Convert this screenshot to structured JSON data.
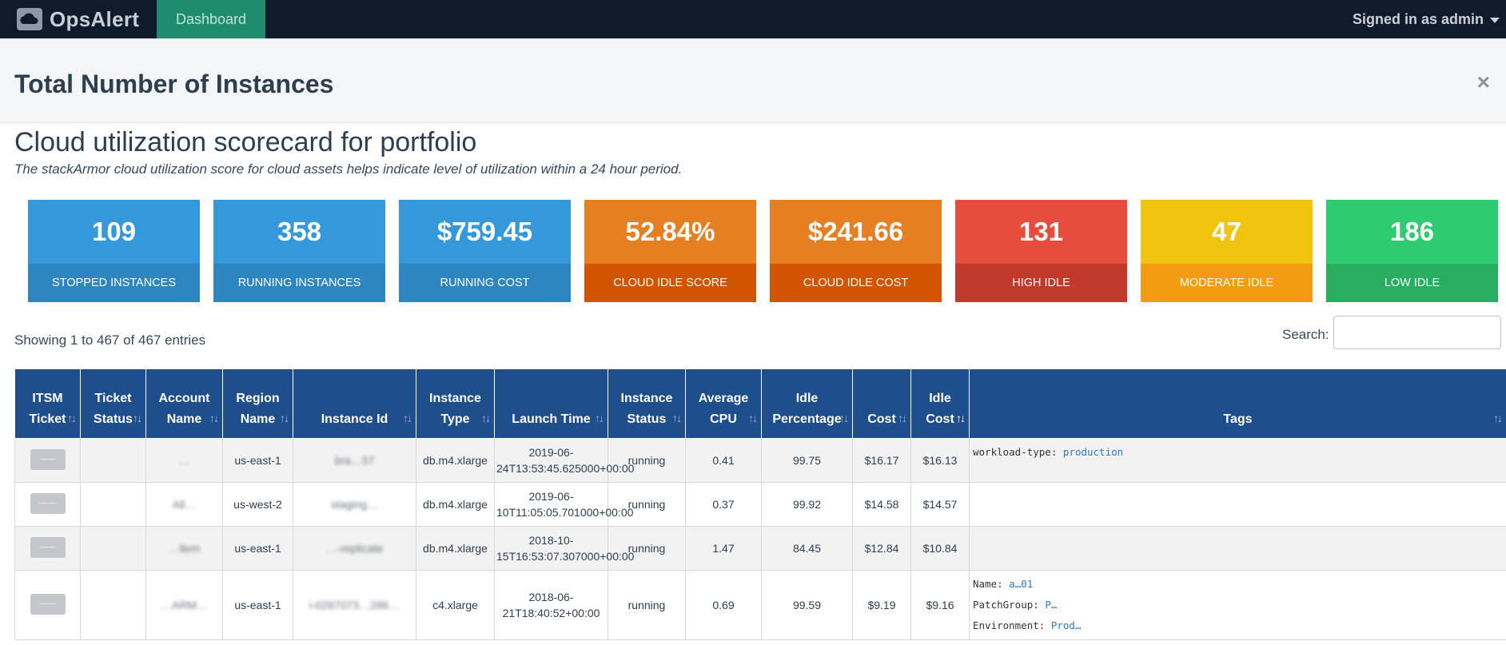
{
  "navbar": {
    "brand": "OpsAlert",
    "tab": "Dashboard",
    "signed_in": "Signed in as admin"
  },
  "modal": {
    "title": "Total Number of Instances",
    "close": "×"
  },
  "scorecard": {
    "title": "Cloud utilization scorecard for portfolio",
    "subtitle": "The stackArmor cloud utilization score for cloud assets helps indicate level of utilization within a 24 hour period."
  },
  "cards": [
    {
      "value": "109",
      "label": "STOPPED INSTANCES",
      "top": "#3498db",
      "bottom": "#2e86c1"
    },
    {
      "value": "358",
      "label": "RUNNING INSTANCES",
      "top": "#3498db",
      "bottom": "#2e86c1"
    },
    {
      "value": "$759.45",
      "label": "RUNNING COST",
      "top": "#3498db",
      "bottom": "#2e86c1"
    },
    {
      "value": "52.84%",
      "label": "CLOUD IDLE SCORE",
      "top": "#e67e22",
      "bottom": "#d35400"
    },
    {
      "value": "$241.66",
      "label": "CLOUD IDLE COST",
      "top": "#e67e22",
      "bottom": "#d35400"
    },
    {
      "value": "131",
      "label": "HIGH IDLE",
      "top": "#e74c3c",
      "bottom": "#c0392b"
    },
    {
      "value": "47",
      "label": "MODERATE IDLE",
      "top": "#f1c40f",
      "bottom": "#f39c12"
    },
    {
      "value": "186",
      "label": "LOW IDLE",
      "top": "#2ecc71",
      "bottom": "#27ae60"
    }
  ],
  "table_info": {
    "showing": "Showing 1 to 467 of 467 entries",
    "search_label": "Search:",
    "search_value": ""
  },
  "columns": [
    {
      "l1": "ITSM",
      "l2": "Ticket"
    },
    {
      "l1": "Ticket",
      "l2": "Status"
    },
    {
      "l1": "Account",
      "l2": "Name"
    },
    {
      "l1": "Region",
      "l2": "Name"
    },
    {
      "l1": "",
      "l2": "Instance Id"
    },
    {
      "l1": "Instance",
      "l2": "Type"
    },
    {
      "l1": "",
      "l2": "Launch Time"
    },
    {
      "l1": "Instance",
      "l2": "Status"
    },
    {
      "l1": "Average",
      "l2": "CPU"
    },
    {
      "l1": "Idle",
      "l2": "Percentage"
    },
    {
      "l1": "",
      "l2": "Cost"
    },
    {
      "l1": "Idle",
      "l2": "Cost"
    },
    {
      "l1": "",
      "l2": "Tags"
    }
  ],
  "rows": [
    {
      "account": "…",
      "region": "us-east-1",
      "instance_id": "bra…57",
      "type": "db.m4.xlarge",
      "launch_l1": "2019-06-",
      "launch_l2": "24T13:53:45.625000+00:00",
      "status": "running",
      "cpu": "0.41",
      "idle": "99.75",
      "cost": "$16.17",
      "idle_cost": "$16.13",
      "tags": [
        {
          "key": "workload-type:",
          "val": "production"
        }
      ]
    },
    {
      "account": "All…",
      "region": "us-west-2",
      "instance_id": "staging…",
      "type": "db.m4.xlarge",
      "launch_l1": "2019-06-",
      "launch_l2": "10T11:05:05.701000+00:00",
      "status": "running",
      "cpu": "0.37",
      "idle": "99.92",
      "cost": "$14.58",
      "idle_cost": "$14.57",
      "tags": []
    },
    {
      "account": "…llem",
      "region": "us-east-1",
      "instance_id": "…-replicate",
      "type": "db.m4.xlarge",
      "launch_l1": "2018-10-",
      "launch_l2": "15T16:53:07.307000+00:00",
      "status": "running",
      "cpu": "1.47",
      "idle": "84.45",
      "cost": "$12.84",
      "idle_cost": "$10.84",
      "tags": []
    },
    {
      "account": "…ARM…",
      "region": "us-east-1",
      "instance_id": "i-0287073…286…",
      "type": "c4.xlarge",
      "launch_l1": "2018-06-",
      "launch_l2": "21T18:40:52+00:00",
      "status": "running",
      "cpu": "0.69",
      "idle": "99.59",
      "cost": "$9.19",
      "idle_cost": "$9.16",
      "tags": [
        {
          "key": "Name:",
          "val": "a…01"
        },
        {
          "key": "PatchGroup:",
          "val": "P…"
        },
        {
          "key": "Environment:",
          "val": "Prod…"
        }
      ]
    }
  ],
  "colors": {
    "navbar": "#0f1a2a",
    "tab": "#1f8c6f",
    "table_header": "#1f4e8c"
  }
}
